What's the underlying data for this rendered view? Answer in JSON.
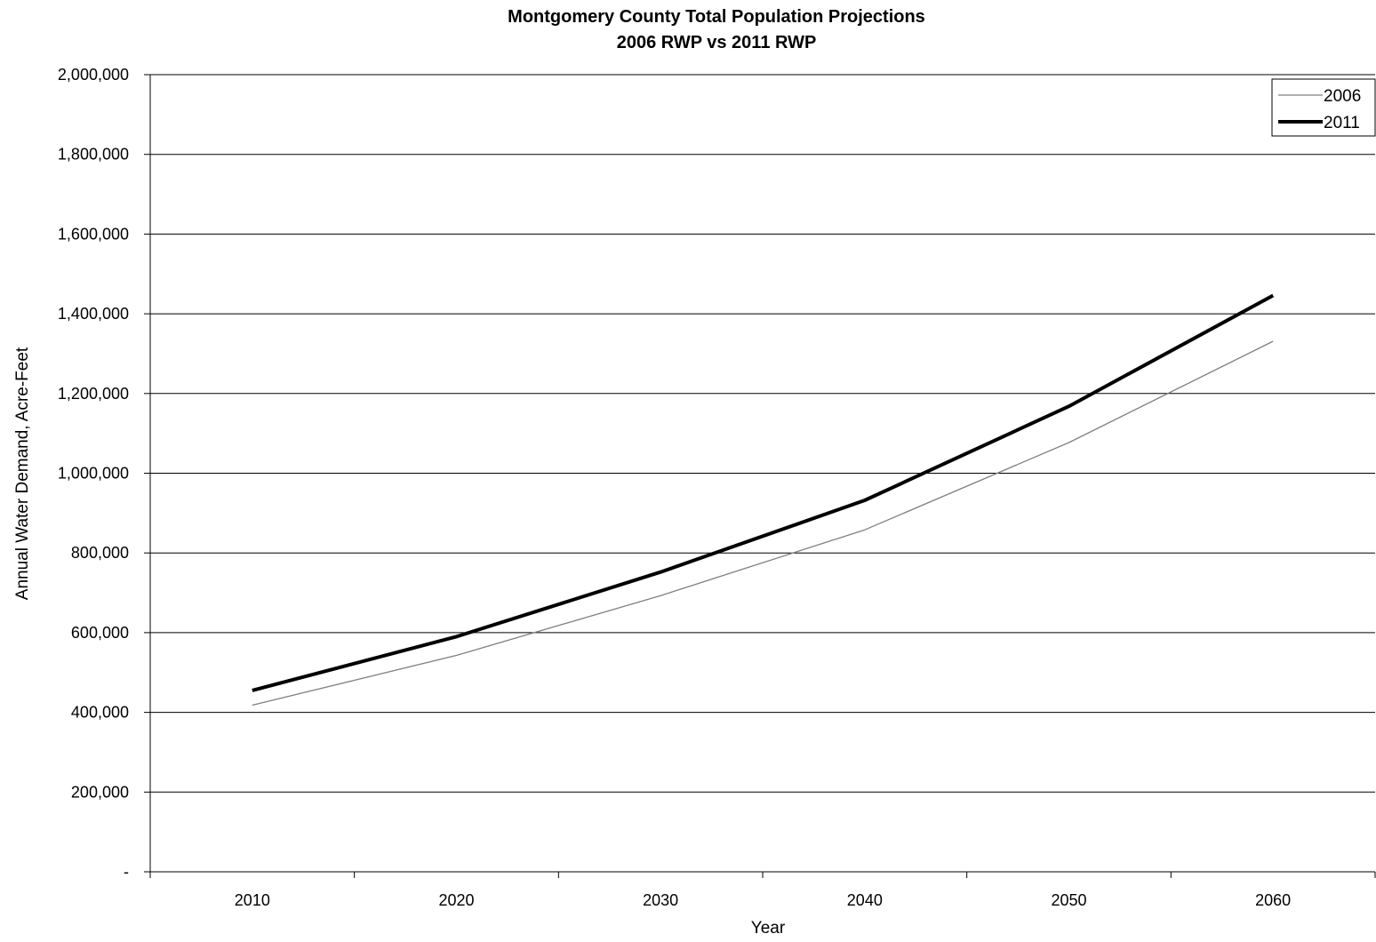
{
  "chart_data": {
    "type": "line",
    "title": "Montgomery County Total Population Projections",
    "subtitle": "2006 RWP vs 2011 RWP",
    "xlabel": "Year",
    "ylabel": "Annual Water Demand, Acre-Feet",
    "categories": [
      "2010",
      "2020",
      "2030",
      "2040",
      "2050",
      "2060"
    ],
    "y_tick_labels": [
      "-",
      "200,000",
      "400,000",
      "600,000",
      "800,000",
      "1,000,000",
      "1,200,000",
      "1,400,000",
      "1,600,000",
      "1,800,000",
      "2,000,000"
    ],
    "y_ticks": [
      0,
      200000,
      400000,
      600000,
      800000,
      1000000,
      1200000,
      1400000,
      1600000,
      1800000,
      2000000
    ],
    "ylim": [
      0,
      2000000
    ],
    "grid": "horizontal major gridlines",
    "legend_position": "top-right",
    "series": [
      {
        "name": "2006",
        "values": [
          418000,
          543000,
          693000,
          858000,
          1077000,
          1331000
        ],
        "color": "#808080",
        "style": "thin"
      },
      {
        "name": "2011",
        "values": [
          455000,
          590000,
          752000,
          932000,
          1168000,
          1446000
        ],
        "color": "#000000",
        "style": "thick"
      }
    ]
  }
}
